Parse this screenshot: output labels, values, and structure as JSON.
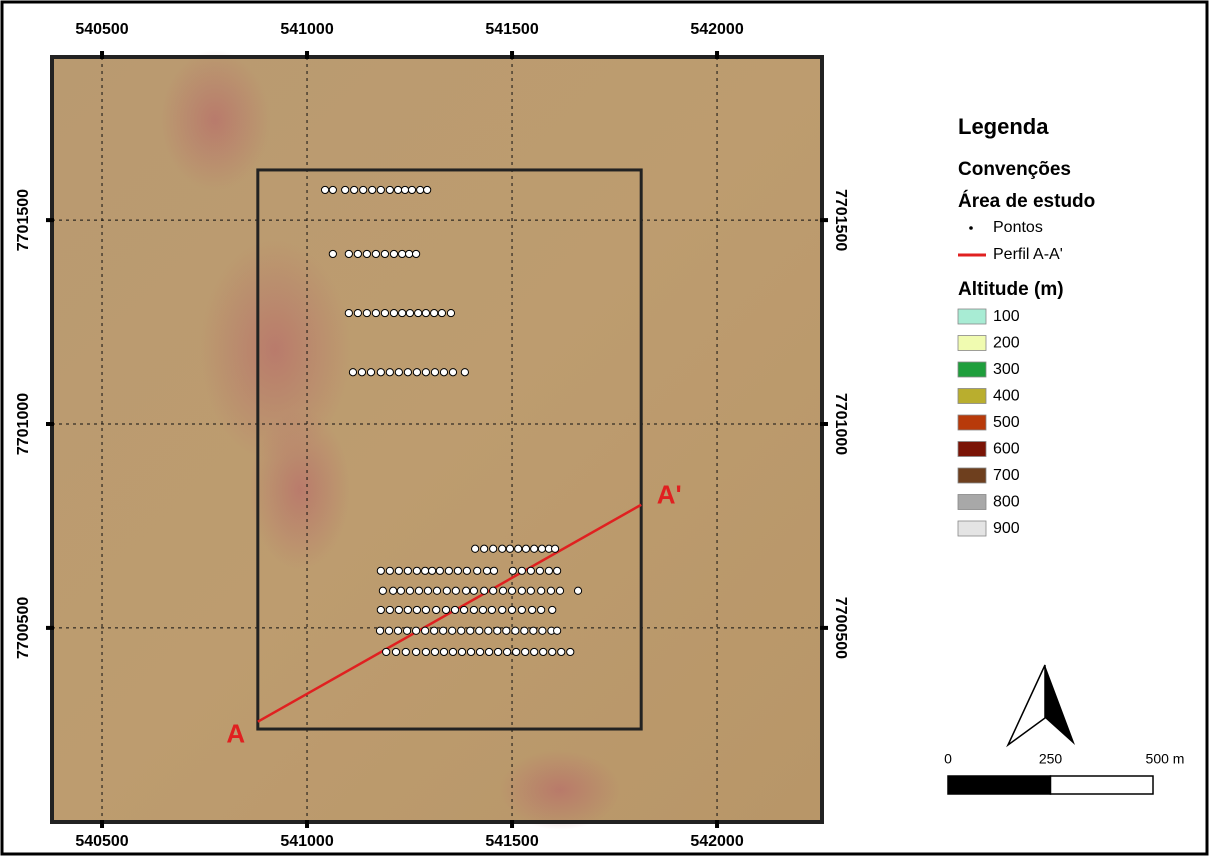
{
  "map": {
    "xlim": [
      540378,
      542256
    ],
    "ylim": [
      7700024,
      7701900
    ],
    "xticks": [
      540500,
      541000,
      541500,
      542000
    ],
    "yticks": [
      7700500,
      7701000,
      7701500
    ],
    "grid": true,
    "study_area": {
      "xlim": [
        540880,
        541815
      ],
      "ylim": [
        7700252,
        7701623
      ]
    },
    "profile": {
      "color": "#e02020",
      "start": {
        "label": "A",
        "x": 540880,
        "y": 7700270
      },
      "end": {
        "label": "A'",
        "x": 541815,
        "y": 7700802
      }
    },
    "points": [
      {
        "y": 7701574,
        "x": [
          541044,
          541063,
          541093,
          541115,
          541137,
          541159,
          541180,
          541202,
          541222,
          541239,
          541256,
          541276,
          541293
        ]
      },
      {
        "y": 7701417,
        "x": [
          541063,
          541102,
          541124,
          541146,
          541168,
          541190,
          541212,
          541232,
          541249,
          541266
        ]
      },
      {
        "y": 7701272,
        "x": [
          541102,
          541124,
          541146,
          541168,
          541190,
          541212,
          541232,
          541251,
          541271,
          541290,
          541310,
          541329,
          541351
        ]
      },
      {
        "y": 7701127,
        "x": [
          541112,
          541134,
          541156,
          541180,
          541202,
          541224,
          541246,
          541268,
          541290,
          541312,
          541334,
          541356,
          541385
        ]
      },
      {
        "y": 7700694,
        "x": [
          541410,
          541432,
          541454,
          541476,
          541495,
          541515,
          541534,
          541554,
          541573,
          541590,
          541605
        ]
      },
      {
        "y": 7700640,
        "x": [
          541180,
          541202,
          541224,
          541246,
          541268,
          541288,
          541305,
          541324,
          541346,
          541368,
          541390,
          541415,
          541439,
          541456,
          541502,
          541524,
          541546,
          541568,
          541590,
          541610
        ]
      },
      {
        "y": 7700591,
        "x": [
          541185,
          541210,
          541229,
          541251,
          541273,
          541295,
          541317,
          541341,
          541363,
          541388,
          541407,
          541432,
          541454,
          541478,
          541500,
          541524,
          541546,
          541571,
          541595,
          541617,
          541661
        ]
      },
      {
        "y": 7700544,
        "x": [
          541180,
          541202,
          541224,
          541246,
          541268,
          541290,
          541315,
          541339,
          541361,
          541383,
          541407,
          541429,
          541451,
          541476,
          541500,
          541524,
          541549,
          541571,
          541598
        ]
      },
      {
        "y": 7700493,
        "x": [
          541178,
          541200,
          541222,
          541244,
          541266,
          541288,
          541310,
          541332,
          541354,
          541376,
          541398,
          541420,
          541442,
          541464,
          541486,
          541508,
          541530,
          541552,
          541574,
          541596,
          541610
        ]
      },
      {
        "y": 7700441,
        "x": [
          541193,
          541217,
          541241,
          541266,
          541290,
          541312,
          541334,
          541356,
          541378,
          541400,
          541422,
          541444,
          541466,
          541488,
          541510,
          541532,
          541554,
          541576,
          541598,
          541620,
          541642
        ]
      }
    ]
  },
  "legend": {
    "title": "Legenda",
    "group": "Convenções",
    "layer": "Área de estudo",
    "points_label": "Pontos",
    "profile_label": "Perfil A-A'",
    "altitude": {
      "title": "Altitude (m)",
      "classes": [
        {
          "value": 100,
          "color": "#a8ecd4"
        },
        {
          "value": 200,
          "color": "#f0fbb0"
        },
        {
          "value": 300,
          "color": "#1f9e3c"
        },
        {
          "value": 400,
          "color": "#b9ae2e"
        },
        {
          "value": 500,
          "color": "#b83a0a"
        },
        {
          "value": 600,
          "color": "#7a1305"
        },
        {
          "value": 700,
          "color": "#6e3f1e"
        },
        {
          "value": 800,
          "color": "#a8a8a8"
        },
        {
          "value": 900,
          "color": "#e4e4e4"
        }
      ]
    }
  },
  "scale_bar": {
    "ticks": [
      0,
      250,
      {
        "value": 500,
        "label": "500 m"
      }
    ]
  }
}
